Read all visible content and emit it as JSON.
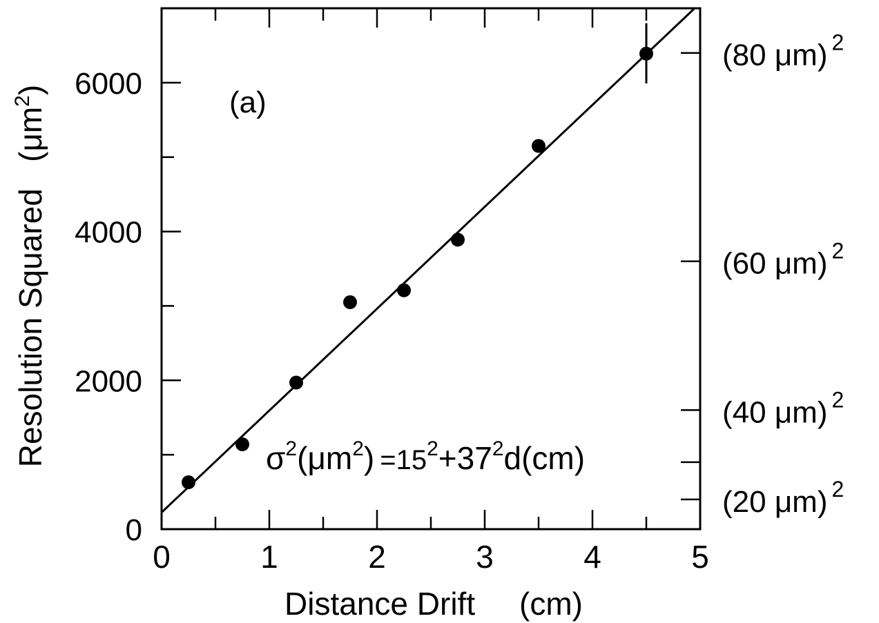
{
  "chart_data": {
    "type": "scatter",
    "panel_label": "(a)",
    "xlabel": "Distance Drift     (cm)",
    "ylabel": "Resolution Squared   (μm",
    "ylabel_sup": "2",
    "ylabel_close": ")",
    "xlim": [
      0,
      5
    ],
    "ylim": [
      0,
      7000
    ],
    "x_ticks": [
      0,
      1,
      2,
      3,
      4,
      5
    ],
    "x_tick_labels": [
      "0",
      "1",
      "2",
      "3",
      "4",
      "5"
    ],
    "x_minor_ticks": [
      0.5,
      1.5,
      2.5,
      3.5,
      4.5
    ],
    "y_ticks": [
      0,
      2000,
      4000,
      6000
    ],
    "y_tick_labels": [
      "0",
      "2000",
      "4000",
      "6000"
    ],
    "y_minor_ticks": [
      1000,
      3000,
      5000
    ],
    "right_axis": {
      "ticks": [
        400,
        900,
        1600,
        3600,
        6400
      ],
      "labeled": [
        {
          "value": 400,
          "label": "(20 μm)",
          "sup": "2"
        },
        {
          "value": 1600,
          "label": "(40 μm)",
          "sup": "2"
        },
        {
          "value": 3600,
          "label": "(60 μm)",
          "sup": "2"
        },
        {
          "value": 6400,
          "label": "(80 μm)",
          "sup": "2"
        }
      ]
    },
    "series": [
      {
        "points": [
          {
            "x": 0.25,
            "y": 630
          },
          {
            "x": 0.75,
            "y": 1140
          },
          {
            "x": 1.25,
            "y": 1970
          },
          {
            "x": 1.75,
            "y": 3050
          },
          {
            "x": 2.25,
            "y": 3210
          },
          {
            "x": 2.75,
            "y": 3890
          },
          {
            "x": 3.5,
            "y": 5150
          },
          {
            "x": 4.5,
            "y": 6390,
            "err_low": 5990,
            "err_high": 6800
          }
        ]
      }
    ],
    "fit_line": {
      "intercept": 225,
      "slope": 1369
    },
    "formula": {
      "parts": [
        "σ",
        "2",
        "(μm",
        "2",
        ")",
        "=15",
        "2",
        "+37",
        "2",
        "d(cm)"
      ]
    }
  }
}
